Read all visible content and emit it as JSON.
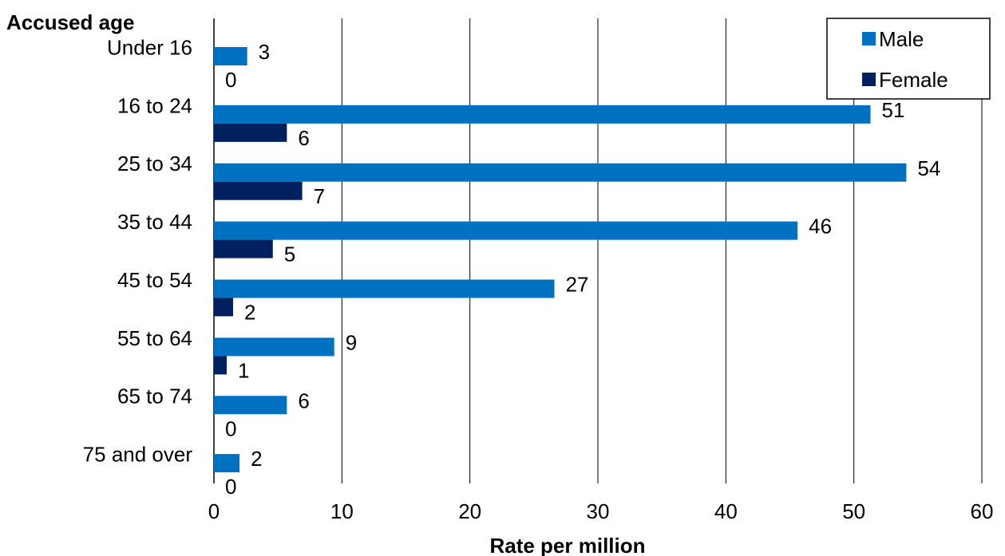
{
  "chart_data": {
    "type": "bar",
    "orientation": "horizontal",
    "ylabel": "Accused age",
    "xlabel": "Rate per million",
    "categories": [
      "Under 16",
      "16 to 24",
      "25 to 34",
      "35 to 44",
      "45 to 54",
      "55 to 64",
      "65 to 74",
      "75 and over"
    ],
    "series": [
      {
        "name": "Male",
        "color": "#0070C0",
        "values": [
          2.6,
          51.3,
          54.1,
          45.6,
          26.6,
          9.4,
          5.7,
          2.0
        ],
        "labels": [
          "3",
          "51",
          "54",
          "46",
          "27",
          "9",
          "6",
          "2"
        ]
      },
      {
        "name": "Female",
        "color": "#002060",
        "values": [
          0,
          5.7,
          6.9,
          4.6,
          1.5,
          1.0,
          0,
          0
        ],
        "labels": [
          "0",
          "6",
          "7",
          "5",
          "2",
          "1",
          "0",
          "0"
        ]
      }
    ],
    "xlim": [
      0,
      60
    ],
    "xticks": [
      "0",
      "10",
      "20",
      "30",
      "40",
      "50",
      "60"
    ],
    "grid": "vertical",
    "legend_position": "top-right"
  }
}
